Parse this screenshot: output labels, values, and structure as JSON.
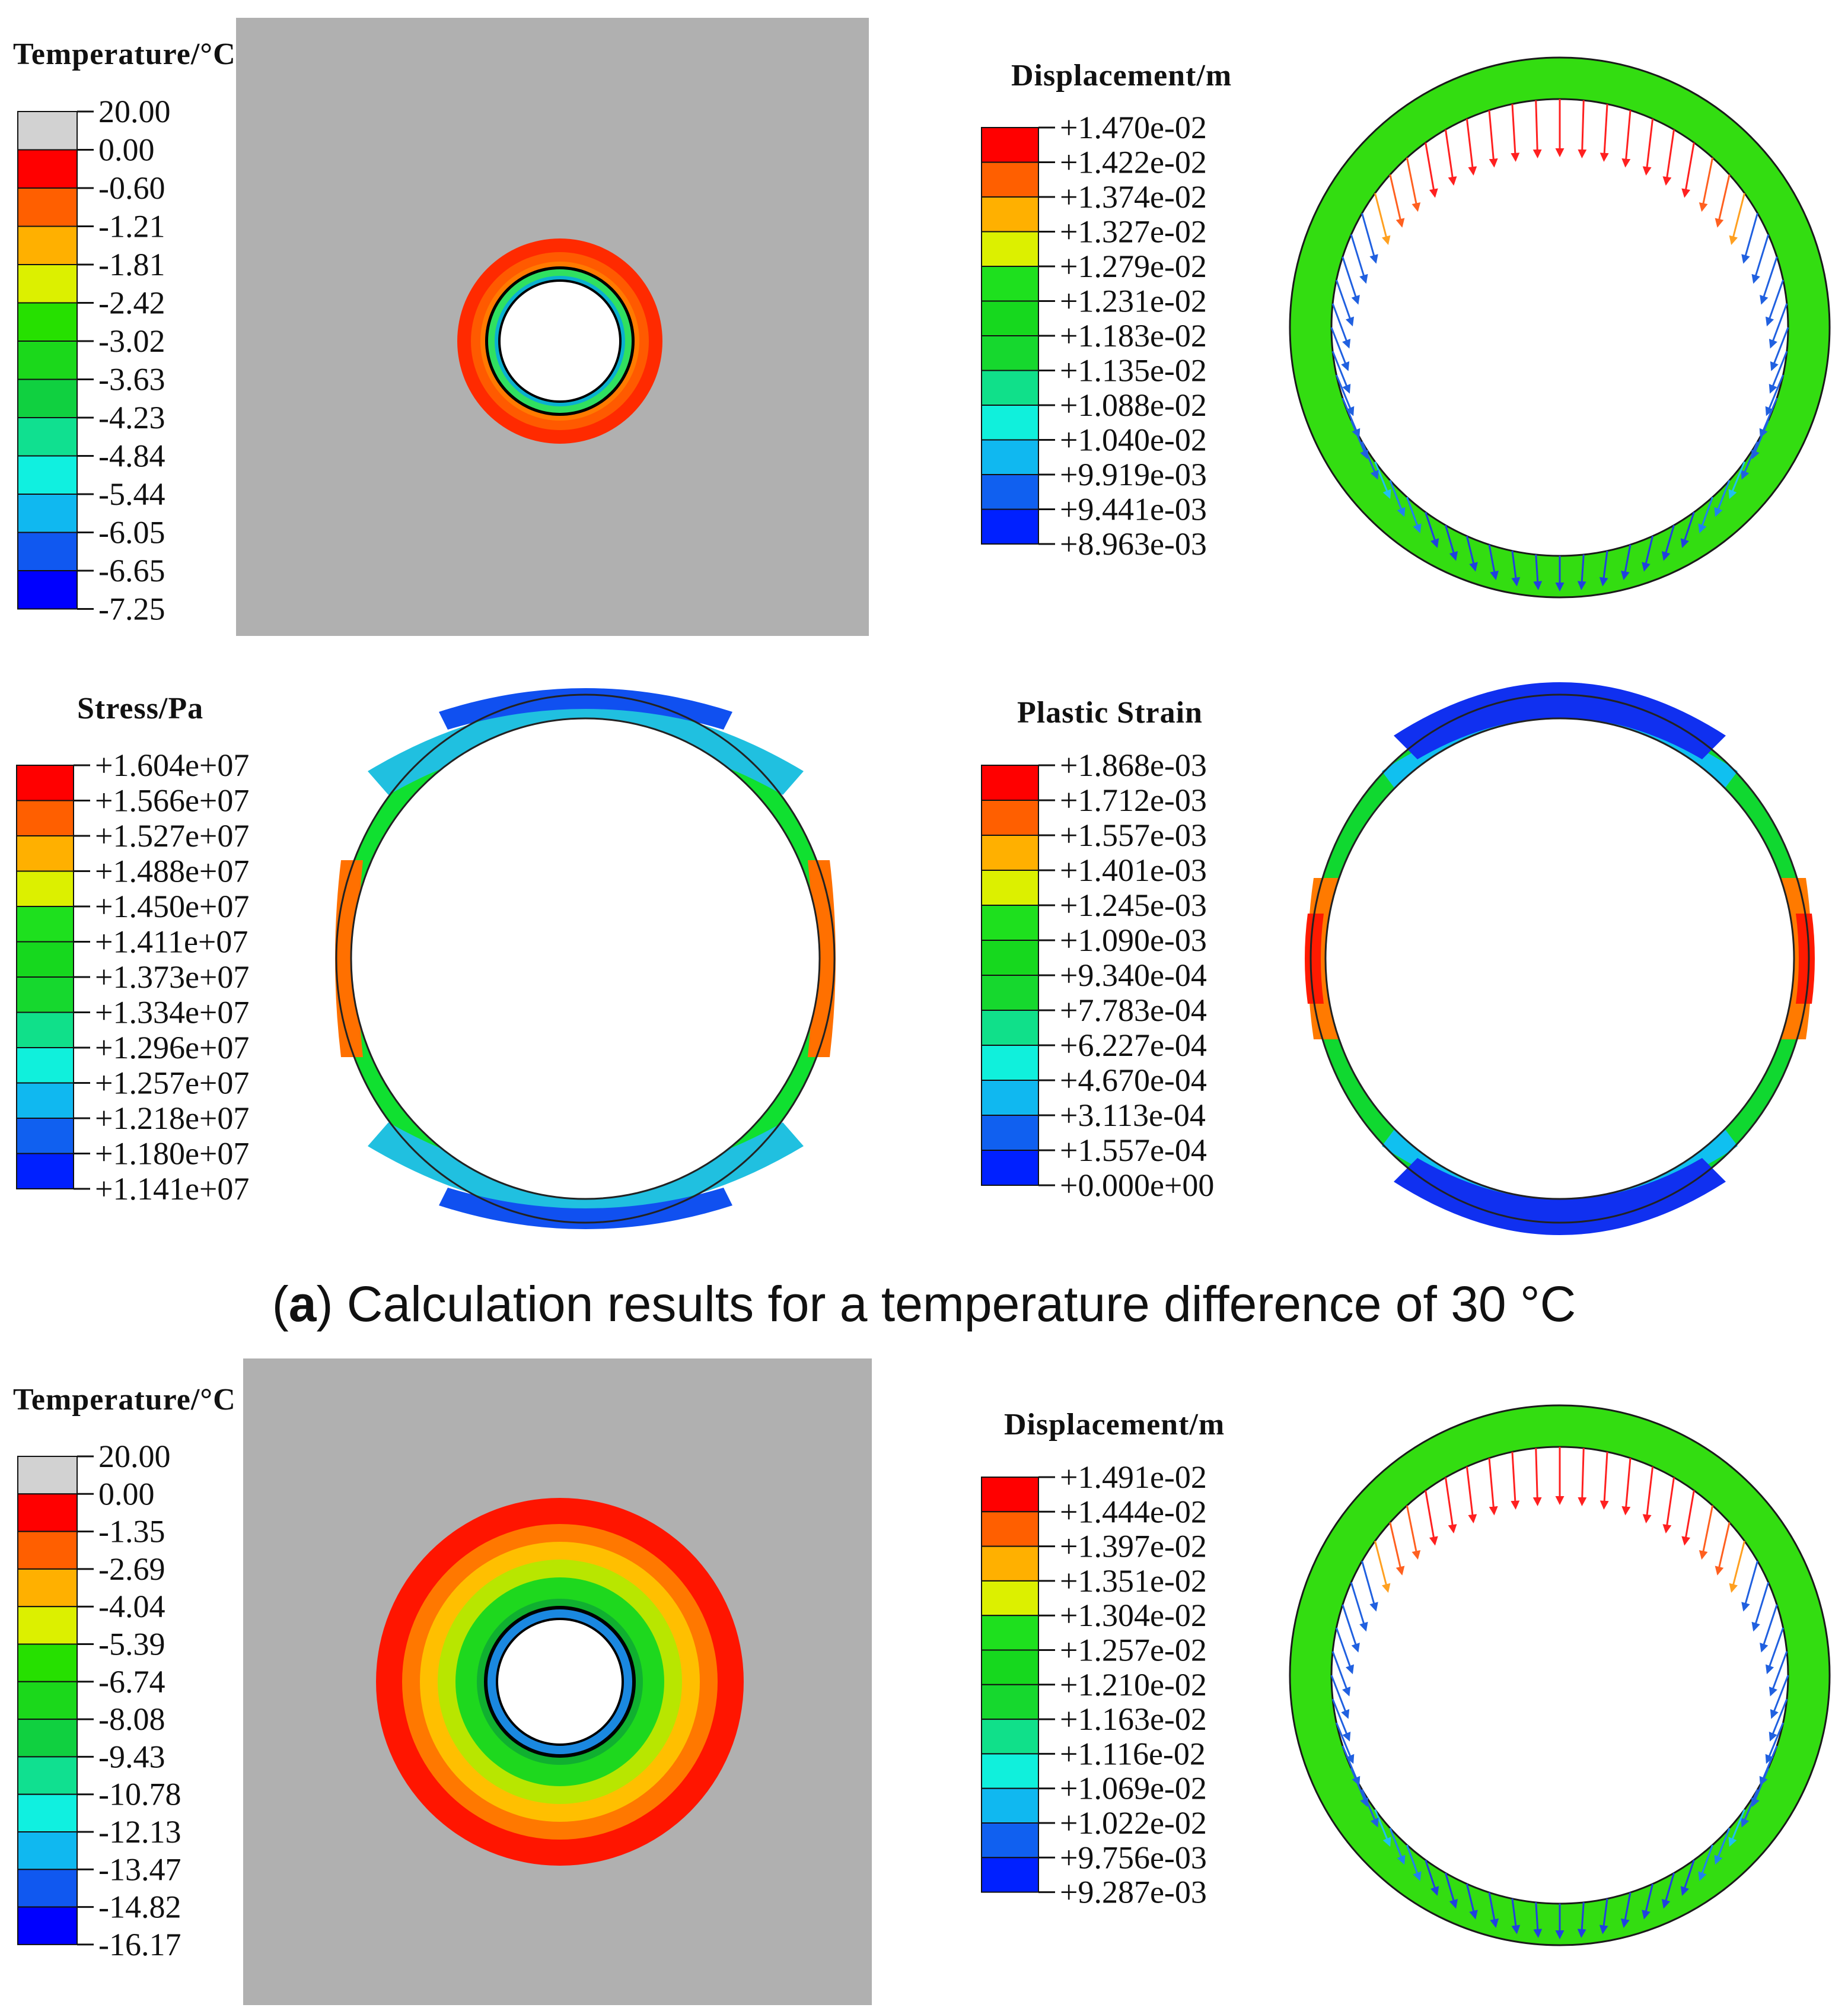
{
  "caption": {
    "letter": "a",
    "text": " Calculation results for a temperature difference of 30 °C"
  },
  "palette": [
    "#d2d2d2",
    "#ff0000",
    "#ff5f00",
    "#ffb000",
    "#dcf000",
    "#26e000",
    "#1bd81b",
    "#10d040",
    "#10e090",
    "#10f0e0",
    "#10b8f0",
    "#1058f0",
    "#0000ff"
  ],
  "palette13": [
    "#ff0000",
    "#ff5f00",
    "#ffb000",
    "#dcf000",
    "#1ee01e",
    "#16d81e",
    "#16d82e",
    "#10e08a",
    "#10f0dc",
    "#10b8f0",
    "#1060f0",
    "#0020ff"
  ],
  "panels": {
    "temp1": {
      "title": "Temperature/°C",
      "labels": [
        "20.00",
        "0.00",
        "-0.60",
        "-1.21",
        "-1.81",
        "-2.42",
        "-3.02",
        "-3.63",
        "-4.23",
        "-4.84",
        "-5.44",
        "-6.05",
        "-6.65",
        "-7.25"
      ]
    },
    "disp1": {
      "title": "Displacement/m",
      "labels": [
        "+1.470e-02",
        "+1.422e-02",
        "+1.374e-02",
        "+1.327e-02",
        "+1.279e-02",
        "+1.231e-02",
        "+1.183e-02",
        "+1.135e-02",
        "+1.088e-02",
        "+1.040e-02",
        "+9.919e-03",
        "+9.441e-03",
        "+8.963e-03"
      ]
    },
    "stress1": {
      "title": "Stress/Pa",
      "labels": [
        "+1.604e+07",
        "+1.566e+07",
        "+1.527e+07",
        "+1.488e+07",
        "+1.450e+07",
        "+1.411e+07",
        "+1.373e+07",
        "+1.334e+07",
        "+1.296e+07",
        "+1.257e+07",
        "+1.218e+07",
        "+1.180e+07",
        "+1.141e+07"
      ]
    },
    "strain1": {
      "title": "Plastic Strain",
      "labels": [
        "+1.868e-03",
        "+1.712e-03",
        "+1.557e-03",
        "+1.401e-03",
        "+1.245e-03",
        "+1.090e-03",
        "+9.340e-04",
        "+7.783e-04",
        "+6.227e-04",
        "+4.670e-04",
        "+3.113e-04",
        "+1.557e-04",
        "+0.000e+00"
      ]
    },
    "temp2": {
      "title": "Temperature/°C",
      "labels": [
        "20.00",
        "0.00",
        "-1.35",
        "-2.69",
        "-4.04",
        "-5.39",
        "-6.74",
        "-8.08",
        "-9.43",
        "-10.78",
        "-12.13",
        "-13.47",
        "-14.82",
        "-16.17"
      ]
    },
    "disp2": {
      "title": "Displacement/m",
      "labels": [
        "+1.491e-02",
        "+1.444e-02",
        "+1.397e-02",
        "+1.351e-02",
        "+1.304e-02",
        "+1.257e-02",
        "+1.210e-02",
        "+1.163e-02",
        "+1.116e-02",
        "+1.069e-02",
        "+1.022e-02",
        "+9.756e-03",
        "+9.287e-03"
      ]
    }
  }
}
